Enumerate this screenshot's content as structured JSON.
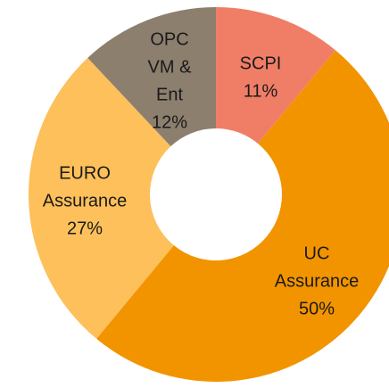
{
  "chart_data": {
    "type": "donut",
    "categories": [
      [
        "SCPI"
      ],
      [
        "UC",
        "Assurance"
      ],
      [
        "EURO",
        "Assurance"
      ],
      [
        "OPC",
        "VM &",
        "Ent"
      ]
    ],
    "values": [
      11,
      50,
      27,
      12
    ],
    "value_labels": [
      "11%",
      "50%",
      "27%",
      "12%"
    ],
    "colors": [
      "#f07e67",
      "#f29400",
      "#fdc05a",
      "#8c7f6e"
    ]
  }
}
